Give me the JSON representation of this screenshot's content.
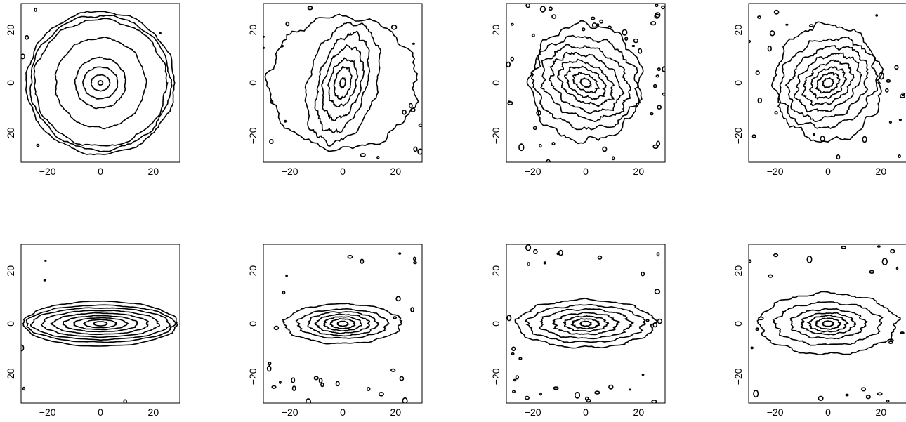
{
  "chart_data": [
    {
      "type": "contour",
      "row": "top",
      "col": 1,
      "xlim": [
        -30,
        30
      ],
      "ylim": [
        -30,
        30
      ],
      "x_ticks": [
        "-20",
        "0",
        "20"
      ],
      "y_ticks": [
        "-20",
        "0",
        "20"
      ],
      "contours": [
        {
          "rx": 0.9,
          "ry": 0.8,
          "rot": 0
        },
        {
          "rx": 3.5,
          "ry": 3.0,
          "rot": 0
        },
        {
          "rx": 6.5,
          "ry": 6,
          "rot": 0
        },
        {
          "rx": 9.5,
          "ry": 9.5,
          "rot": 0
        },
        {
          "rx": 17,
          "ry": 17,
          "rot": 0
        },
        {
          "rx": 25,
          "ry": 24,
          "rot": 0
        },
        {
          "rx": 26.5,
          "ry": 25.5,
          "rot": 0
        },
        {
          "rx": 28,
          "ry": 27,
          "rot": 0
        }
      ],
      "noise": 0.02
    },
    {
      "type": "contour",
      "row": "top",
      "col": 2,
      "xlim": [
        -30,
        30
      ],
      "ylim": [
        -30,
        30
      ],
      "x_ticks": [
        "-20",
        "0",
        "20"
      ],
      "y_ticks": [
        "-20",
        "0",
        "20"
      ],
      "contours": [
        {
          "rx": 1.0,
          "ry": 1.8,
          "rot": -10
        },
        {
          "rx": 3,
          "ry": 6,
          "rot": -12
        },
        {
          "rx": 5,
          "ry": 9,
          "rot": -14
        },
        {
          "rx": 7,
          "ry": 14,
          "rot": -15
        },
        {
          "rx": 9,
          "ry": 19,
          "rot": -15
        },
        {
          "rx": 13,
          "ry": 23,
          "rot": -15
        },
        {
          "rx": 28,
          "ry": 25,
          "rot": 0
        }
      ],
      "noise": 0.05
    },
    {
      "type": "contour",
      "row": "top",
      "col": 3,
      "xlim": [
        -30,
        30
      ],
      "ylim": [
        -30,
        30
      ],
      "x_ticks": [
        "-20",
        "0",
        "20"
      ],
      "y_ticks": [
        "-20",
        "0",
        "20"
      ],
      "contours": [
        {
          "rx": 2,
          "ry": 1.5,
          "rot": -30
        },
        {
          "rx": 5,
          "ry": 3,
          "rot": -30
        },
        {
          "rx": 8,
          "ry": 5,
          "rot": -30
        },
        {
          "rx": 11,
          "ry": 7,
          "rot": -30
        },
        {
          "rx": 14,
          "ry": 10,
          "rot": -28
        },
        {
          "rx": 17,
          "ry": 13,
          "rot": -25
        },
        {
          "rx": 20,
          "ry": 17,
          "rot": -20
        },
        {
          "rx": 21,
          "ry": 22,
          "rot": 0
        }
      ],
      "noise": 0.06
    },
    {
      "type": "contour",
      "row": "top",
      "col": 4,
      "xlim": [
        -30,
        30
      ],
      "ylim": [
        -30,
        30
      ],
      "x_ticks": [
        "-20",
        "0",
        "20"
      ],
      "y_ticks": [
        "-20",
        "0",
        "20"
      ],
      "contours": [
        {
          "rx": 2,
          "ry": 1.6,
          "rot": 30
        },
        {
          "rx": 4.5,
          "ry": 3.2,
          "rot": 35
        },
        {
          "rx": 7,
          "ry": 5,
          "rot": 35
        },
        {
          "rx": 10,
          "ry": 7,
          "rot": 35
        },
        {
          "rx": 13,
          "ry": 9.5,
          "rot": 35
        },
        {
          "rx": 16,
          "ry": 12.5,
          "rot": 35
        },
        {
          "rx": 19,
          "ry": 16,
          "rot": 30
        },
        {
          "rx": 20,
          "ry": 22,
          "rot": 0
        }
      ],
      "noise": 0.06
    },
    {
      "type": "contour",
      "row": "bottom",
      "col": 1,
      "xlim": [
        -30,
        30
      ],
      "ylim": [
        -30,
        30
      ],
      "x_ticks": [
        "-20",
        "0",
        "20"
      ],
      "y_ticks": [
        "-20",
        "0",
        "20"
      ],
      "contours": [
        {
          "rx": 2.5,
          "ry": 0.8,
          "rot": 0
        },
        {
          "rx": 6,
          "ry": 1.5,
          "rot": 0
        },
        {
          "rx": 10,
          "ry": 2.2,
          "rot": 0
        },
        {
          "rx": 14,
          "ry": 3,
          "rot": 0
        },
        {
          "rx": 18,
          "ry": 4,
          "rot": 0
        },
        {
          "rx": 22,
          "ry": 5,
          "rot": 0
        },
        {
          "rx": 26,
          "ry": 6,
          "rot": 0
        },
        {
          "rx": 28,
          "ry": 7,
          "rot": 0
        },
        {
          "rx": 29,
          "ry": 8.5,
          "rot": 0
        }
      ],
      "noise": 0.02
    },
    {
      "type": "contour",
      "row": "bottom",
      "col": 2,
      "xlim": [
        -30,
        30
      ],
      "ylim": [
        -30,
        30
      ],
      "x_ticks": [
        "-20",
        "0",
        "20"
      ],
      "y_ticks": [
        "-20",
        "0",
        "20"
      ],
      "contours": [
        {
          "rx": 2,
          "ry": 0.9,
          "rot": 0
        },
        {
          "rx": 4.5,
          "ry": 1.8,
          "rot": 0
        },
        {
          "rx": 7,
          "ry": 2.6,
          "rot": 0
        },
        {
          "rx": 10,
          "ry": 3.5,
          "rot": 0
        },
        {
          "rx": 13,
          "ry": 4.5,
          "rot": 0
        },
        {
          "rx": 17,
          "ry": 5.5,
          "rot": 0
        },
        {
          "rx": 22,
          "ry": 7.5,
          "rot": 0
        }
      ],
      "noise": 0.04
    },
    {
      "type": "contour",
      "row": "bottom",
      "col": 3,
      "xlim": [
        -30,
        30
      ],
      "ylim": [
        -30,
        30
      ],
      "x_ticks": [
        "-20",
        "0",
        "20"
      ],
      "y_ticks": [
        "-20",
        "0",
        "20"
      ],
      "contours": [
        {
          "rx": 2,
          "ry": 0.9,
          "rot": 0
        },
        {
          "rx": 5,
          "ry": 1.8,
          "rot": 0
        },
        {
          "rx": 8,
          "ry": 2.8,
          "rot": 0
        },
        {
          "rx": 12,
          "ry": 4,
          "rot": 0
        },
        {
          "rx": 17,
          "ry": 5.5,
          "rot": 0
        },
        {
          "rx": 22,
          "ry": 7,
          "rot": 0
        },
        {
          "rx": 26,
          "ry": 9,
          "rot": 0
        }
      ],
      "noise": 0.05
    },
    {
      "type": "contour",
      "row": "bottom",
      "col": 4,
      "xlim": [
        -30,
        30
      ],
      "ylim": [
        -30,
        30
      ],
      "x_ticks": [
        "-20",
        "0",
        "20"
      ],
      "y_ticks": [
        "-20",
        "0",
        "20"
      ],
      "contours": [
        {
          "rx": 2,
          "ry": 1,
          "rot": 0
        },
        {
          "rx": 4.5,
          "ry": 2,
          "rot": 0
        },
        {
          "rx": 7,
          "ry": 3,
          "rot": 0
        },
        {
          "rx": 10,
          "ry": 4,
          "rot": 0
        },
        {
          "rx": 14,
          "ry": 5.5,
          "rot": 0
        },
        {
          "rx": 20,
          "ry": 8,
          "rot": 0
        },
        {
          "rx": 26,
          "ry": 11.5,
          "rot": 0
        }
      ],
      "noise": 0.05
    }
  ]
}
